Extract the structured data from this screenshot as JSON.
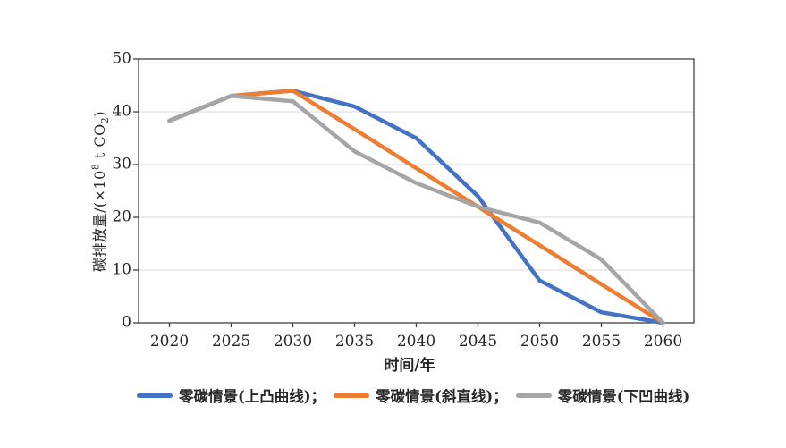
{
  "chart_data": {
    "type": "line",
    "title": "",
    "xlabel": "时间/年",
    "ylabel": "碳排放量/(×10⁸ t CO₂)",
    "categories": [
      "2020",
      "2025",
      "2030",
      "2035",
      "2040",
      "2045",
      "2050",
      "2055",
      "2060"
    ],
    "series": [
      {
        "name": "零碳情景(上凸曲线)",
        "color": "#4472C4",
        "values": [
          38.3,
          43,
          44,
          41,
          35,
          24,
          8,
          2,
          0
        ]
      },
      {
        "name": "零碳情景(斜直线)",
        "color": "#ED7D31",
        "values": [
          38.3,
          43,
          44,
          36.7,
          29.3,
          22,
          14.7,
          7.3,
          0
        ]
      },
      {
        "name": "零碳情景(下凹曲线)",
        "color": "#A5A5A5",
        "values": [
          38.3,
          43,
          42,
          32.5,
          26.5,
          22,
          19,
          12,
          0
        ]
      }
    ],
    "ylim": [
      0,
      50
    ],
    "y_ticks": [
      0,
      10,
      20,
      30,
      40,
      50
    ],
    "grid": true,
    "grid_color": "#D9D9D9",
    "axis_color": "#404040",
    "legend_position": "bottom"
  },
  "axes": {
    "x_title": "时间/年",
    "y_title": {
      "part1": "碳排放量/(×10",
      "sup": "8",
      "part2": " t CO",
      "sub": "2",
      "part3": ")"
    }
  },
  "legend": {
    "items": [
      {
        "label": "零碳情景(上凸曲线)；",
        "color": "#4472C4"
      },
      {
        "label": "零碳情景(斜直线)；",
        "color": "#ED7D31"
      },
      {
        "label": "零碳情景(下凹曲线)",
        "color": "#A5A5A5"
      }
    ]
  }
}
